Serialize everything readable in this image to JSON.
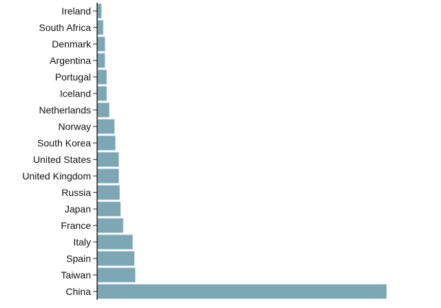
{
  "chart_data": {
    "type": "bar",
    "orientation": "horizontal",
    "categories": [
      "Ireland",
      "South Africa",
      "Denmark",
      "Argentina",
      "Portugal",
      "Iceland",
      "Netherlands",
      "Norway",
      "South Korea",
      "United States",
      "United Kingdom",
      "Russia",
      "Japan",
      "France",
      "Italy",
      "Spain",
      "Taiwan",
      "China"
    ],
    "values": [
      5,
      7,
      9,
      9,
      11,
      11,
      14,
      20,
      21,
      25,
      25,
      26,
      27,
      30,
      41,
      43,
      44,
      334
    ],
    "xlim": [
      0,
      334
    ],
    "title": "",
    "xlabel": "",
    "ylabel": "",
    "grid": false,
    "legend": "none",
    "colors": {
      "bar": "#7ea7b6",
      "axis": "#222222",
      "text": "#111111"
    }
  }
}
